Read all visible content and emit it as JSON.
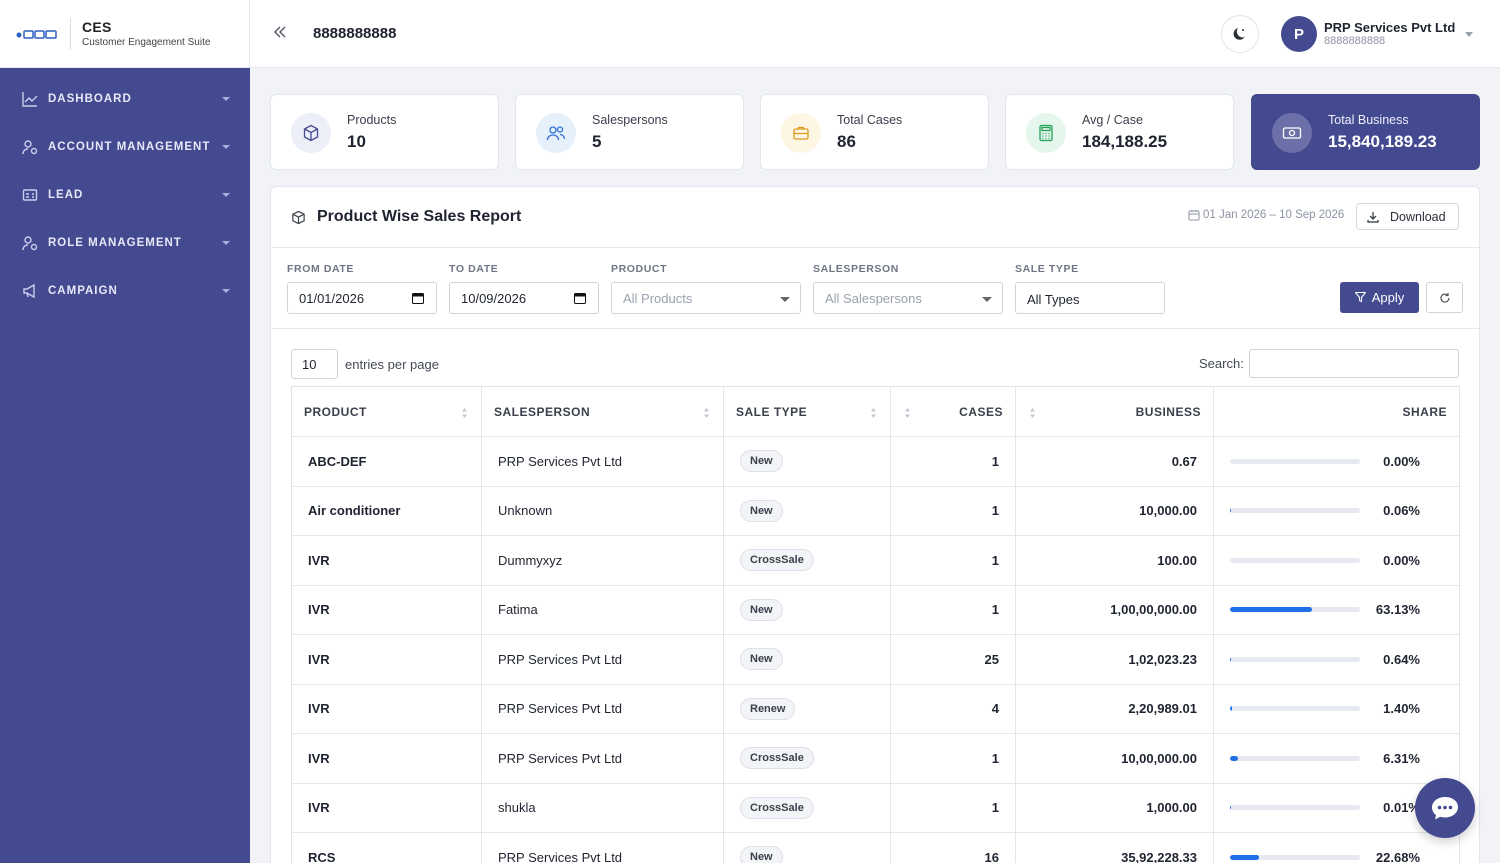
{
  "brand": {
    "title": "CES",
    "subtitle": "Customer Engagement Suite"
  },
  "sidebar": {
    "items": [
      {
        "label": "DASHBOARD",
        "icon": "chart-line-icon"
      },
      {
        "label": "ACCOUNT MANAGEMENT",
        "icon": "user-gear-icon"
      },
      {
        "label": "LEAD",
        "icon": "id-card-icon"
      },
      {
        "label": "ROLE MANAGEMENT",
        "icon": "user-role-icon"
      },
      {
        "label": "CAMPAIGN",
        "icon": "megaphone-icon"
      }
    ]
  },
  "topbar": {
    "title": "8888888888",
    "user": {
      "initial": "P",
      "name": "PRP Services Pvt Ltd",
      "phone": "8888888888"
    }
  },
  "stats": [
    {
      "label": "Products",
      "value": "10",
      "icon": "box-icon",
      "icon_bg": "#eceef8",
      "icon_color": "#444a8f"
    },
    {
      "label": "Salespersons",
      "value": "5",
      "icon": "users-icon",
      "icon_bg": "#e6f0fb",
      "icon_color": "#2f6fd6"
    },
    {
      "label": "Total Cases",
      "value": "86",
      "icon": "briefcase-icon",
      "icon_bg": "#fdf6e3",
      "icon_color": "#d99a1e"
    },
    {
      "label": "Avg / Case",
      "value": "184,188.25",
      "icon": "calculator-icon",
      "icon_bg": "#e5f6ec",
      "icon_color": "#22a05a"
    },
    {
      "label": "Total Business",
      "value": "15,840,189.23",
      "icon": "money-icon",
      "icon_bg": "#6b70a8",
      "icon_color": "#ffffff"
    }
  ],
  "report": {
    "title": "Product Wise Sales Report",
    "date_range": "01 Jan 2026 – 10 Sep 2026",
    "download_label": "Download",
    "filters": {
      "from_label": "FROM DATE",
      "from_value": "01/01/2026",
      "to_label": "TO DATE",
      "to_value": "10/09/2026",
      "product_label": "PRODUCT",
      "product_value": "All Products",
      "salesperson_label": "SALESPERSON",
      "salesperson_value": "All Salespersons",
      "saletype_label": "SALE TYPE",
      "saletype_value": "All Types",
      "apply_label": "Apply"
    },
    "entries_value": "10",
    "entries_text": "entries per page",
    "search_label": "Search:",
    "columns": [
      "PRODUCT",
      "SALESPERSON",
      "SALE TYPE",
      "CASES",
      "BUSINESS",
      "SHARE"
    ],
    "rows": [
      {
        "product": "ABC-DEF",
        "salesperson": "PRP Services Pvt Ltd",
        "sale_type": "New",
        "cases": "1",
        "business": "0.67",
        "share": "0.00%",
        "share_value": 0
      },
      {
        "product": "Air conditioner",
        "salesperson": "Unknown",
        "sale_type": "New",
        "cases": "1",
        "business": "10,000.00",
        "share": "0.06%",
        "share_value": 0.06
      },
      {
        "product": "IVR",
        "salesperson": "Dummyxyz",
        "sale_type": "CrossSale",
        "cases": "1",
        "business": "100.00",
        "share": "0.00%",
        "share_value": 0
      },
      {
        "product": "IVR",
        "salesperson": "Fatima",
        "sale_type": "New",
        "cases": "1",
        "business": "1,00,00,000.00",
        "share": "63.13%",
        "share_value": 63.13
      },
      {
        "product": "IVR",
        "salesperson": "PRP Services Pvt Ltd",
        "sale_type": "New",
        "cases": "25",
        "business": "1,02,023.23",
        "share": "0.64%",
        "share_value": 0.64
      },
      {
        "product": "IVR",
        "salesperson": "PRP Services Pvt Ltd",
        "sale_type": "Renew",
        "cases": "4",
        "business": "2,20,989.01",
        "share": "1.40%",
        "share_value": 1.4
      },
      {
        "product": "IVR",
        "salesperson": "PRP Services Pvt Ltd",
        "sale_type": "CrossSale",
        "cases": "1",
        "business": "10,00,000.00",
        "share": "6.31%",
        "share_value": 6.31
      },
      {
        "product": "IVR",
        "salesperson": "shukla",
        "sale_type": "CrossSale",
        "cases": "1",
        "business": "1,000.00",
        "share": "0.01%",
        "share_value": 0.01
      },
      {
        "product": "RCS",
        "salesperson": "PRP Services Pvt Ltd",
        "sale_type": "New",
        "cases": "16",
        "business": "35,92,228.33",
        "share": "22.68%",
        "share_value": 22.68
      }
    ]
  },
  "colors": {
    "primary": "#444a8f",
    "bar": "#1f6fe5"
  }
}
